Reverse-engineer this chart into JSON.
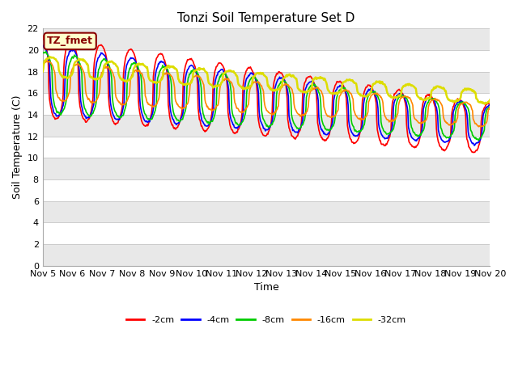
{
  "title": "Tonzi Soil Temperature Set D",
  "xlabel": "Time",
  "ylabel": "Soil Temperature (C)",
  "ylim": [
    0,
    22
  ],
  "xlim": [
    0,
    15
  ],
  "xtick_labels": [
    "Nov 5",
    "Nov 6",
    "Nov 7",
    "Nov 8",
    "Nov 9",
    "Nov 10",
    "Nov 11",
    "Nov 12",
    "Nov 13",
    "Nov 14",
    "Nov 15",
    "Nov 16",
    "Nov 17",
    "Nov 18",
    "Nov 19",
    "Nov 20"
  ],
  "ytick_values": [
    0,
    2,
    4,
    6,
    8,
    10,
    12,
    14,
    16,
    18,
    20,
    22
  ],
  "legend_labels": [
    "-2cm",
    "-4cm",
    "-8cm",
    "-16cm",
    "-32cm"
  ],
  "line_colors": [
    "#ff0000",
    "#0000ff",
    "#00cc00",
    "#ff8800",
    "#dddd00"
  ],
  "line_widths": [
    1.2,
    1.2,
    1.2,
    1.2,
    1.8
  ],
  "annotation_text": "TZ_fmet",
  "annotation_bg": "#ffffcc",
  "annotation_border": "#880000",
  "bg_band_color": "#e8e8e8",
  "title_fontsize": 11,
  "axis_fontsize": 9,
  "tick_fontsize": 8
}
